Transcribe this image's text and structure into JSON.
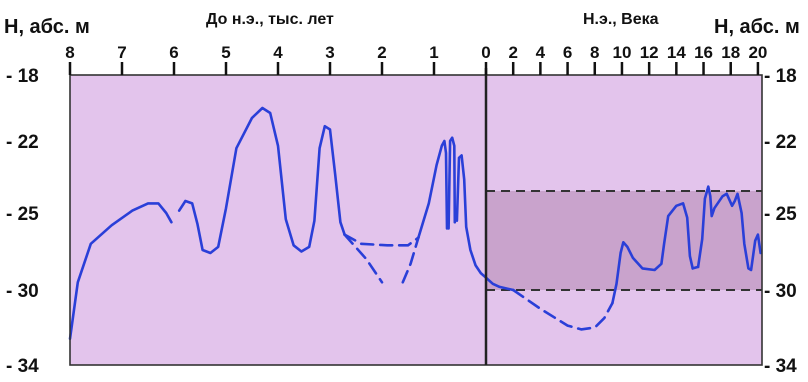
{
  "chart_data": {
    "type": "line",
    "left_title": "До н.э., тыс. лет",
    "right_title": "Н.э., Века",
    "ylabel_left": "Н, абс. м",
    "ylabel_right": "Н, абс. м",
    "ylim": [
      -34,
      -18
    ],
    "y_ticks": [
      "- 18",
      "- 22",
      "- 25",
      "- 30",
      "- 34"
    ],
    "y_tick_values": [
      -18,
      -22,
      -25,
      -30,
      -34
    ],
    "bc_ticks": [
      "8",
      "7",
      "6",
      "5",
      "4",
      "3",
      "2",
      "1",
      "0"
    ],
    "bc_tick_values": [
      8,
      7,
      6,
      5,
      4,
      3,
      2,
      1,
      0
    ],
    "ad_ticks": [
      "2",
      "4",
      "6",
      "8",
      "10",
      "12",
      "14",
      "16",
      "18",
      "20"
    ],
    "ad_tick_values": [
      2,
      4,
      6,
      8,
      10,
      12,
      14,
      16,
      18,
      20
    ],
    "bc_range_ky": [
      8,
      0
    ],
    "ad_range_centuries": [
      0,
      20.3
    ],
    "band_ad": [
      -24,
      -30
    ],
    "colors": {
      "plot_bg": "#e3c4ec",
      "band": "#c9a3cc",
      "line": "#2a3fd8",
      "frame": "#333333"
    },
    "series": [
      {
        "era": "BC",
        "style": "solid",
        "points": [
          [
            8.0,
            -32.6
          ],
          [
            7.85,
            -29.5
          ],
          [
            7.6,
            -27.0
          ],
          [
            7.2,
            -25.8
          ],
          [
            6.8,
            -24.9
          ],
          [
            6.5,
            -24.6
          ],
          [
            6.3,
            -24.6
          ],
          [
            6.15,
            -25.0
          ],
          [
            6.05,
            -25.6
          ]
        ]
      },
      {
        "era": "BC",
        "style": "solid",
        "points": [
          [
            5.9,
            -24.9
          ],
          [
            5.78,
            -24.5
          ],
          [
            5.65,
            -24.6
          ],
          [
            5.55,
            -25.7
          ],
          [
            5.45,
            -27.4
          ],
          [
            5.3,
            -27.6
          ],
          [
            5.15,
            -27.2
          ],
          [
            5.0,
            -24.8
          ],
          [
            4.8,
            -22.3
          ],
          [
            4.5,
            -20.6
          ],
          [
            4.3,
            -20.0
          ],
          [
            4.15,
            -20.3
          ],
          [
            4.0,
            -22.2
          ],
          [
            3.85,
            -25.4
          ],
          [
            3.7,
            -27.1
          ],
          [
            3.55,
            -27.5
          ],
          [
            3.4,
            -27.2
          ],
          [
            3.3,
            -25.5
          ],
          [
            3.2,
            -22.3
          ],
          [
            3.1,
            -21.1
          ],
          [
            3.0,
            -21.3
          ],
          [
            2.9,
            -23.4
          ],
          [
            2.8,
            -25.6
          ],
          [
            2.72,
            -26.4
          ]
        ]
      },
      {
        "era": "BC",
        "style": "dashed",
        "points": [
          [
            2.72,
            -26.4
          ],
          [
            2.4,
            -27.0
          ],
          [
            1.9,
            -27.1
          ],
          [
            1.5,
            -27.1
          ],
          [
            1.3,
            -26.6
          ]
        ]
      },
      {
        "era": "BC",
        "style": "dashed",
        "points": [
          [
            2.72,
            -26.4
          ],
          [
            2.3,
            -28.0
          ],
          [
            2.0,
            -29.5
          ]
        ]
      },
      {
        "era": "BC",
        "style": "dashed",
        "points": [
          [
            1.6,
            -29.5
          ],
          [
            1.45,
            -28.3
          ],
          [
            1.3,
            -26.6
          ]
        ]
      },
      {
        "era": "BC",
        "style": "solid",
        "points": [
          [
            1.3,
            -26.6
          ],
          [
            1.1,
            -24.6
          ],
          [
            0.95,
            -23.0
          ],
          [
            0.85,
            -22.2
          ],
          [
            0.8,
            -22.0
          ],
          [
            0.77,
            -22.5
          ],
          [
            0.75,
            -26.0
          ]
        ]
      },
      {
        "era": "BC",
        "style": "solid",
        "points": [
          [
            0.72,
            -26.0
          ],
          [
            0.69,
            -22.0
          ],
          [
            0.65,
            -21.8
          ],
          [
            0.61,
            -22.2
          ],
          [
            0.6,
            -25.6
          ]
        ]
      },
      {
        "era": "BC",
        "style": "solid",
        "points": [
          [
            0.56,
            -25.5
          ],
          [
            0.52,
            -22.7
          ],
          [
            0.47,
            -22.6
          ],
          [
            0.42,
            -23.6
          ],
          [
            0.38,
            -25.9
          ],
          [
            0.3,
            -27.4
          ],
          [
            0.2,
            -28.4
          ],
          [
            0.1,
            -28.9
          ],
          [
            0.0,
            -29.2
          ]
        ]
      },
      {
        "era": "AD",
        "style": "solid",
        "points": [
          [
            0.0,
            -29.2
          ],
          [
            0.5,
            -29.6
          ],
          [
            1.0,
            -29.8
          ],
          [
            2.0,
            -30.0
          ]
        ]
      },
      {
        "era": "AD",
        "style": "dashed",
        "points": [
          [
            2.0,
            -30.0
          ],
          [
            4.0,
            -31.0
          ],
          [
            6.0,
            -31.9
          ],
          [
            7.0,
            -32.1
          ],
          [
            8.0,
            -32.0
          ],
          [
            8.7,
            -31.5
          ],
          [
            9.3,
            -30.7
          ]
        ]
      },
      {
        "era": "AD",
        "style": "solid",
        "points": [
          [
            9.3,
            -30.7
          ],
          [
            9.6,
            -29.6
          ],
          [
            9.9,
            -27.6
          ],
          [
            10.1,
            -26.9
          ],
          [
            10.4,
            -27.2
          ],
          [
            10.8,
            -27.9
          ],
          [
            11.5,
            -28.6
          ],
          [
            12.4,
            -28.7
          ],
          [
            12.9,
            -28.3
          ],
          [
            13.1,
            -27.0
          ],
          [
            13.4,
            -25.2
          ],
          [
            14.0,
            -24.7
          ],
          [
            14.5,
            -24.6
          ],
          [
            14.8,
            -25.3
          ],
          [
            15.0,
            -27.8
          ],
          [
            15.2,
            -28.6
          ]
        ]
      },
      {
        "era": "AD",
        "style": "dashed",
        "points": [
          [
            15.2,
            -28.6
          ],
          [
            15.6,
            -28.5
          ]
        ]
      },
      {
        "era": "AD",
        "style": "solid",
        "points": [
          [
            15.6,
            -28.5
          ],
          [
            15.9,
            -26.7
          ],
          [
            16.1,
            -24.4
          ],
          [
            16.35,
            -23.9
          ],
          [
            16.5,
            -24.3
          ],
          [
            16.6,
            -25.2
          ],
          [
            16.8,
            -24.8
          ],
          [
            17.4,
            -24.3
          ],
          [
            17.7,
            -24.2
          ],
          [
            18.1,
            -24.7
          ],
          [
            18.3,
            -24.5
          ],
          [
            18.5,
            -24.2
          ],
          [
            18.8,
            -25.0
          ],
          [
            19.0,
            -27.0
          ],
          [
            19.3,
            -28.6
          ],
          [
            19.5,
            -28.7
          ],
          [
            19.8,
            -26.8
          ],
          [
            20.0,
            -26.4
          ],
          [
            20.2,
            -27.6
          ]
        ]
      }
    ]
  }
}
